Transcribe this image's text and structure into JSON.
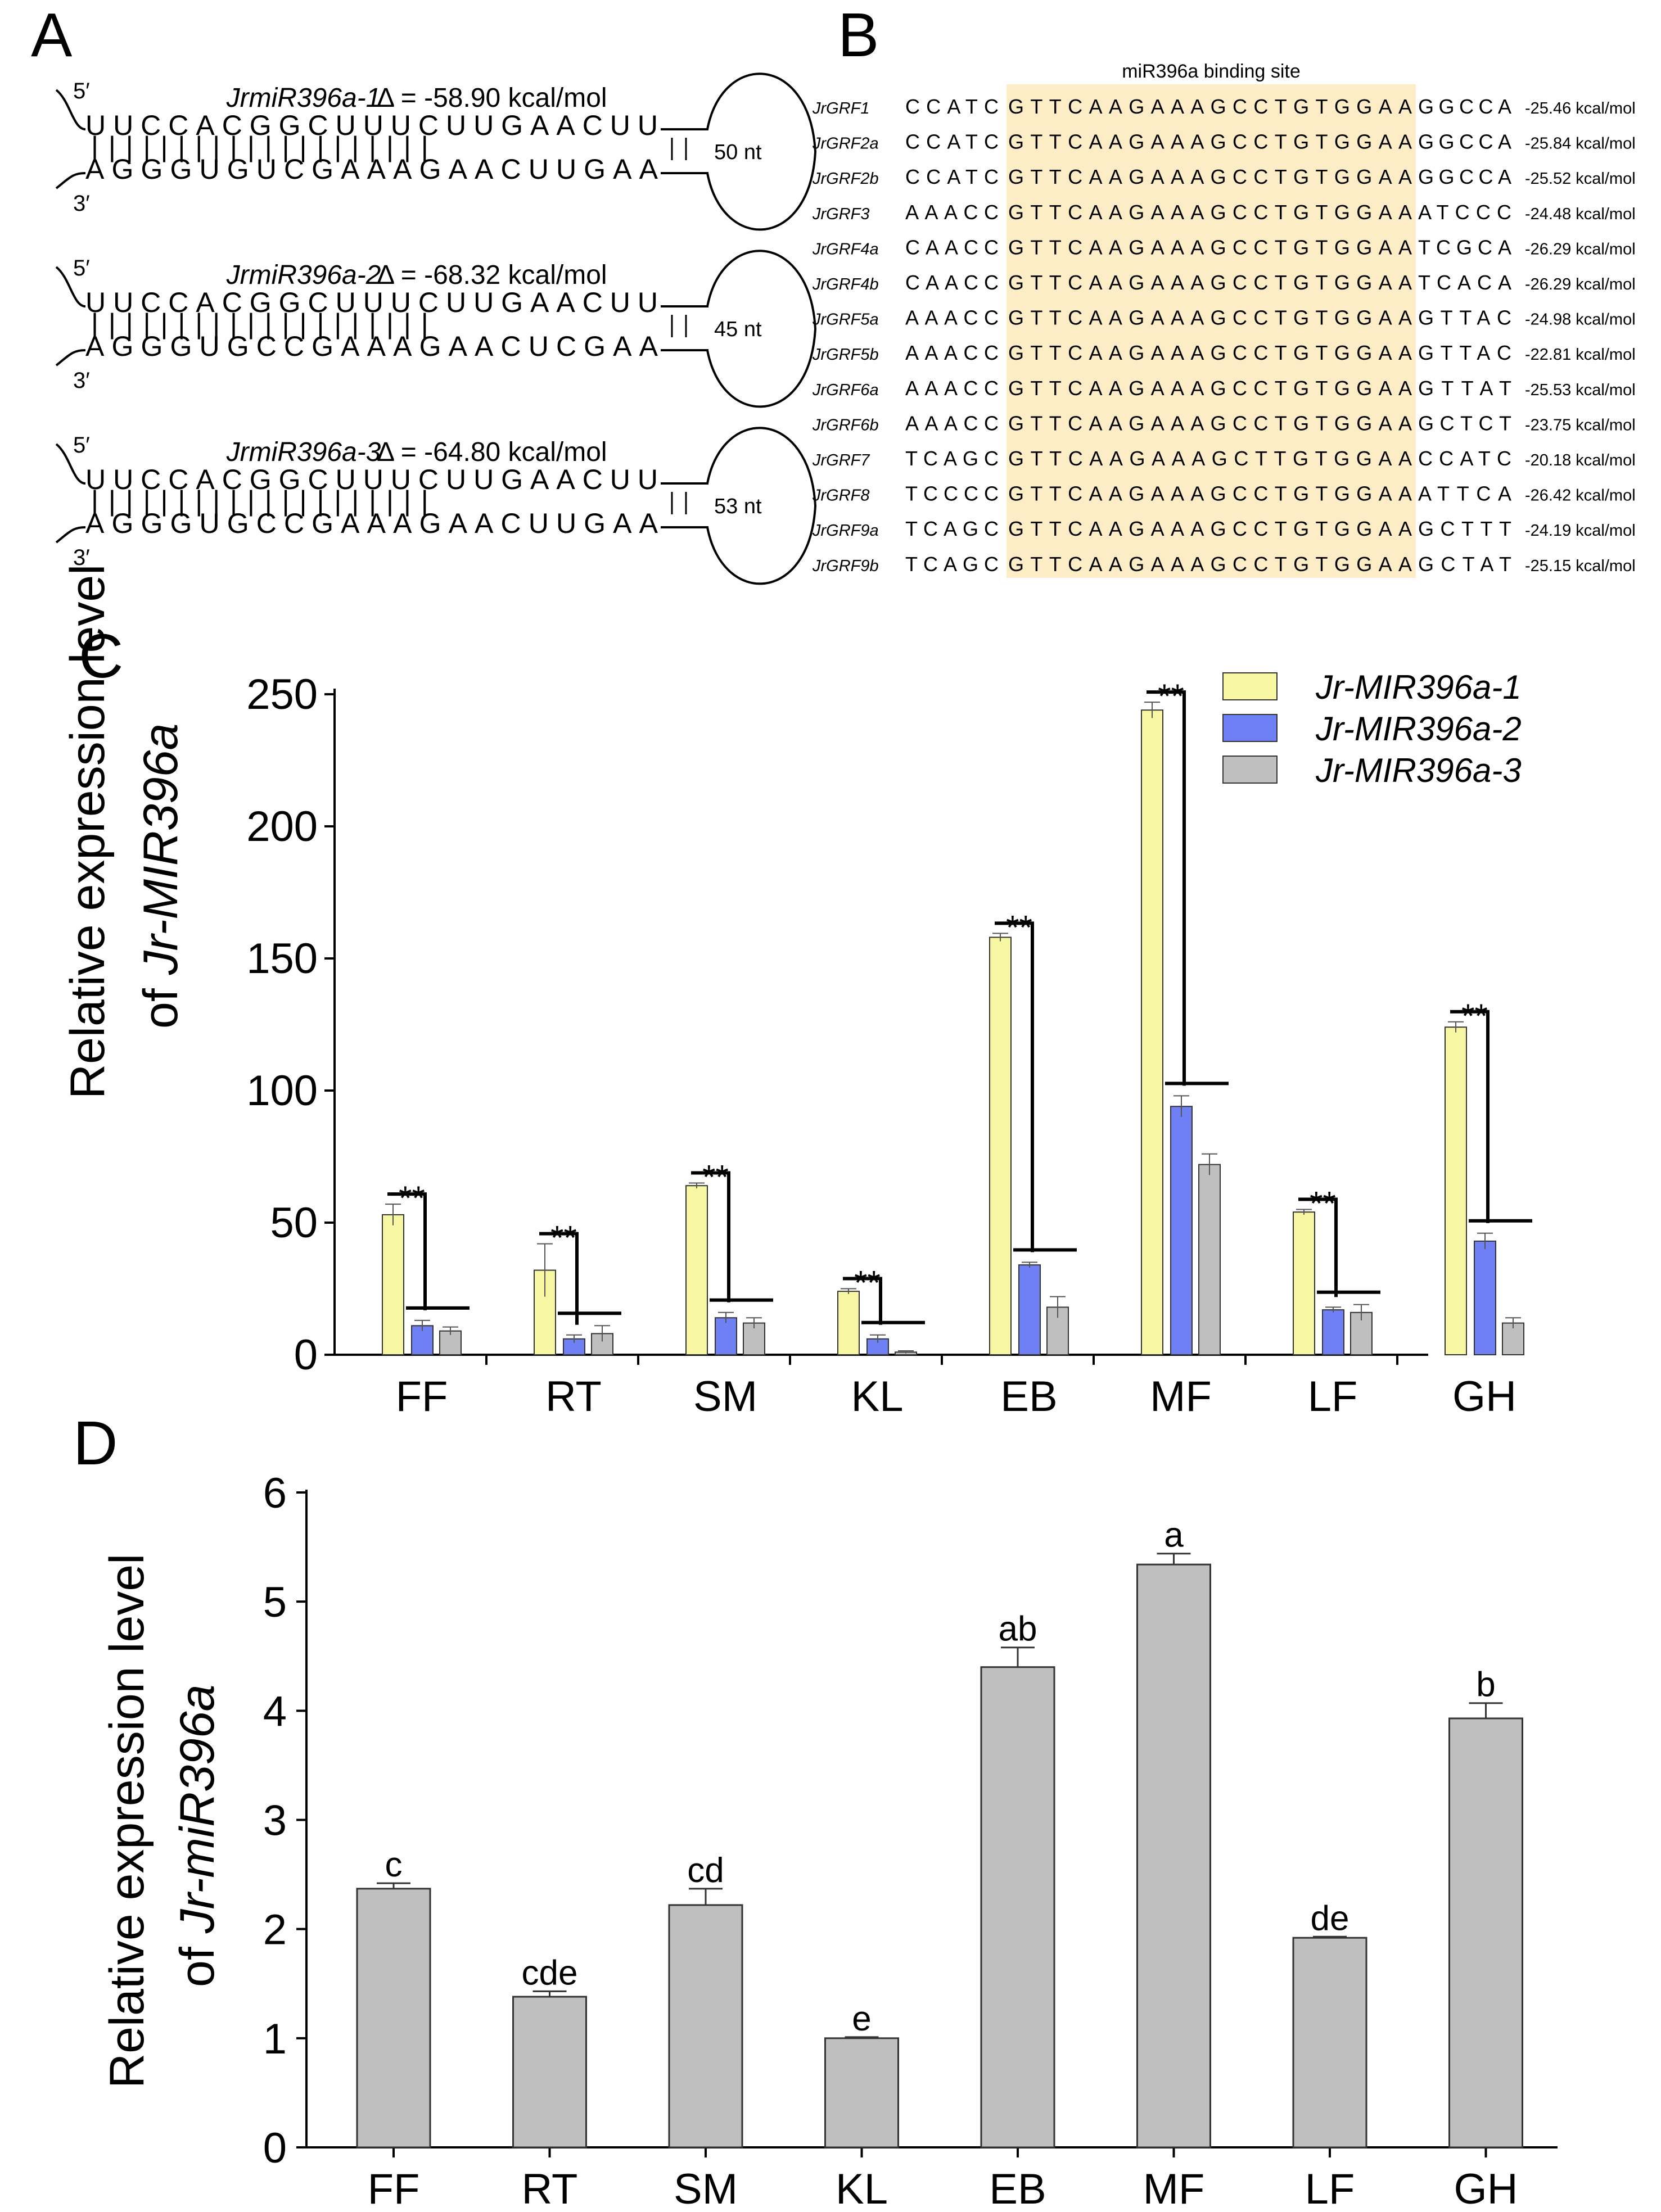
{
  "panels": {
    "A": "A",
    "B": "B",
    "C": "C",
    "D": "D"
  },
  "hairpins": [
    {
      "name": "JrmiR396a-1",
      "energy": "Δ = -58.90 kcal/mol",
      "top": "UUCCACGGCUUUCUUGAACUU",
      "pairs": "| | | | | | | | | | | | | | | | | | | |",
      "bottom": "AGGGUGUCGAAAGAACUUGAA",
      "loop": "50 nt",
      "end5": "5′",
      "end3": "3′"
    },
    {
      "name": "JrmiR396a-2",
      "energy": "Δ = -68.32 kcal/mol",
      "top": "UUCCACGGCUUUCUUGAACUU",
      "pairs": "| | | | | | | | | | | | | | | |     | | | |",
      "bottom": "AGGGUGCCGAAAGAACUCGAA",
      "loop": "45 nt",
      "end5": "5′",
      "end3": "3′"
    },
    {
      "name": "JrmiR396a-3",
      "energy": "Δ = -64.80 kcal/mol",
      "top": "UUCCACGGCUUUCUUGAACUU",
      "pairs": "| | | | | | | | | | | | | | | | | | | |",
      "bottom": "AGGGUGCCGAAAGAACUUGAA",
      "loop": "53 nt",
      "end5": "5′",
      "end3": "3′"
    }
  ],
  "binding": {
    "title": "miR396a binding site",
    "rows": [
      {
        "gene": "JrGRF1",
        "pre": "CCATC",
        "site": "GTTCAAGAAAGCCTGTGGAA",
        "post": "GGCCA",
        "energy": "-25.46 kcal/mol"
      },
      {
        "gene": "JrGRF2a",
        "pre": "CCATC",
        "site": "GTTCAAGAAAGCCTGTGGAA",
        "post": "GGCCA",
        "energy": "-25.84 kcal/mol"
      },
      {
        "gene": "JrGRF2b",
        "pre": "CCATC",
        "site": "GTTCAAGAAAGCCTGTGGAA",
        "post": "GGCCA",
        "energy": "-25.52 kcal/mol"
      },
      {
        "gene": "JrGRF3",
        "pre": "AAACC",
        "site": "GTTCAAGAAAGCCTGTGGAA",
        "post": "ATCCC",
        "energy": "-24.48 kcal/mol"
      },
      {
        "gene": "JrGRF4a",
        "pre": "CAACC",
        "site": "GTTCAAGAAAGCCTGTGGAA",
        "post": "TCGCA",
        "energy": "-26.29 kcal/mol"
      },
      {
        "gene": "JrGRF4b",
        "pre": "CAACC",
        "site": "GTTCAAGAAAGCCTGTGGAA",
        "post": "TCACA",
        "energy": "-26.29 kcal/mol"
      },
      {
        "gene": "JrGRF5a",
        "pre": "AAACC",
        "site": "GTTCAAGAAAGCCTGTGGAA",
        "post": "GTTAC",
        "energy": "-24.98 kcal/mol"
      },
      {
        "gene": "JrGRF5b",
        "pre": "AAACC",
        "site": "GTTCAAGAAAGCCTGTGGAA",
        "post": "GTTAC",
        "energy": "-22.81 kcal/mol"
      },
      {
        "gene": "JrGRF6a",
        "pre": "AAACC",
        "site": "GTTCAAGAAAGCCTGTGGAA",
        "post": "GTTAT",
        "energy": "-25.53 kcal/mol"
      },
      {
        "gene": "JrGRF6b",
        "pre": "AAACC",
        "site": "GTTCAAGAAAGCCTGTGGAA",
        "post": "GCTCT",
        "energy": "-23.75 kcal/mol"
      },
      {
        "gene": "JrGRF7",
        "pre": "TCAGC",
        "site": "GTTCAAGAAAGCTTGTGGAA",
        "post": "CCATC",
        "energy": "-20.18 kcal/mol"
      },
      {
        "gene": "JrGRF8",
        "pre": "TCCCC",
        "site": "GTTCAAGAAAGCCTGTGGAA",
        "post": "ATTCA",
        "energy": "-26.42 kcal/mol"
      },
      {
        "gene": "JrGRF9a",
        "pre": "TCAGC",
        "site": "GTTCAAGAAAGCCTGTGGAA",
        "post": "GCTTT",
        "energy": "-24.19 kcal/mol"
      },
      {
        "gene": "JrGRF9b",
        "pre": "TCAGC",
        "site": "GTTCAAGAAAGCCTGTGGAA",
        "post": "GCTAT",
        "energy": "-25.15 kcal/mol"
      }
    ]
  },
  "colors": {
    "yellow": "#f7f7a3",
    "blue": "#6f80f4",
    "gray": "#bfbfbf",
    "highlight": "#fcedc6"
  },
  "chart_data": [
    {
      "type": "bar",
      "title": "",
      "ylabel_line1": "Relative expression level",
      "ylabel_line2_plain": "of ",
      "ylabel_line2_italic": "Jr-MIR396a",
      "ylim": [
        0,
        250
      ],
      "yticks": [
        "0",
        "50",
        "100",
        "150",
        "200",
        "250"
      ],
      "ytick_values": [
        0,
        50,
        100,
        150,
        200,
        250
      ],
      "categories": [
        "FF",
        "RT",
        "SM",
        "KL",
        "EB",
        "MF",
        "LF",
        "GH"
      ],
      "series": [
        {
          "name": "Jr-MIR396a-1",
          "values": [
            53,
            32,
            64,
            24,
            158,
            244,
            54,
            124
          ],
          "errors": [
            4,
            10,
            1,
            1,
            1.5,
            3,
            1,
            2
          ]
        },
        {
          "name": "Jr-MIR396a-2",
          "values": [
            11,
            6,
            14,
            6,
            34,
            94,
            17,
            43
          ],
          "errors": [
            2,
            1.5,
            2,
            1.5,
            1,
            4,
            1,
            3
          ]
        },
        {
          "name": "Jr-MIR396a-3",
          "values": [
            9,
            8,
            12,
            1,
            18,
            72,
            16,
            12
          ],
          "errors": [
            1.5,
            3,
            2,
            0.5,
            4,
            4,
            3,
            2
          ]
        }
      ],
      "significance": "**"
    },
    {
      "type": "bar",
      "title": "",
      "ylabel_line1": "Relative expression level",
      "ylabel_line2_plain": "of ",
      "ylabel_line2_italic": "Jr-miR396a",
      "ylim": [
        0,
        6
      ],
      "yticks": [
        "0",
        "1",
        "2",
        "3",
        "4",
        "5",
        "6"
      ],
      "ytick_values": [
        0,
        1,
        2,
        3,
        4,
        5,
        6
      ],
      "categories": [
        "FF",
        "RT",
        "SM",
        "KL",
        "EB",
        "MF",
        "LF",
        "GH"
      ],
      "values": [
        2.37,
        1.38,
        2.22,
        1.0,
        4.4,
        5.34,
        1.92,
        3.93
      ],
      "errors": [
        0.05,
        0.05,
        0.15,
        0.01,
        0.18,
        0.1,
        0.01,
        0.14
      ],
      "letters": [
        "c",
        "cde",
        "cd",
        "e",
        "ab",
        "a",
        "de",
        "b"
      ]
    }
  ]
}
